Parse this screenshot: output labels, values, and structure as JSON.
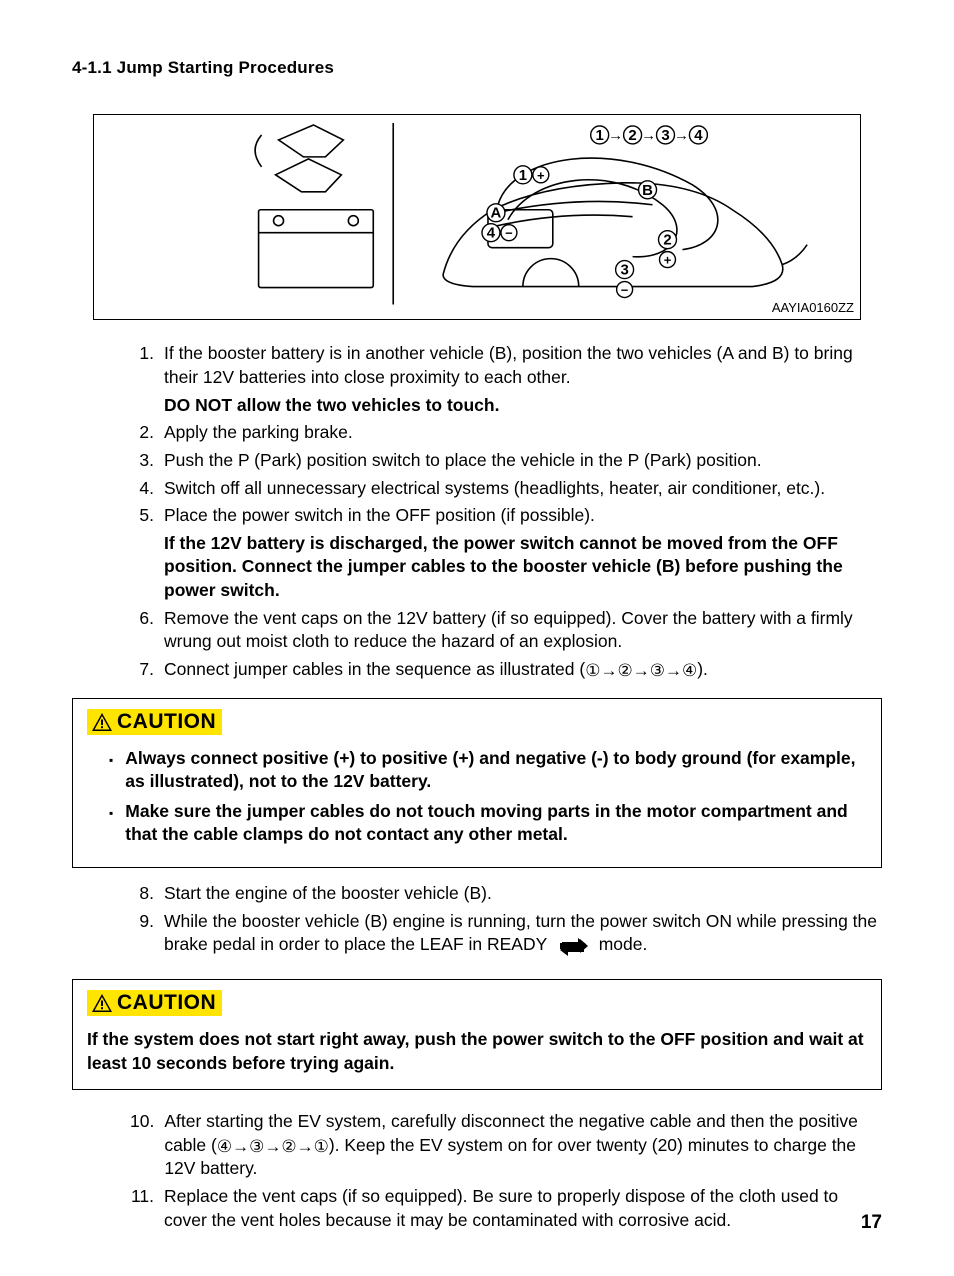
{
  "heading": "4-1.1  Jump Starting Procedures",
  "figure_ref": "AAYIA0160ZZ",
  "steps_a": [
    {
      "n": "1.",
      "t": "If the booster battery is in another vehicle (B), position the two vehicles (A and B) to bring their 12V batteries into close proximity to each other."
    }
  ],
  "bold_a": "DO NOT allow the two vehicles to touch.",
  "steps_b": [
    {
      "n": "2.",
      "t": "Apply the parking brake."
    },
    {
      "n": "3.",
      "t": "Push the P (Park) position switch to place the vehicle in the P (Park) position."
    },
    {
      "n": "4.",
      "t": "Switch off all unnecessary electrical systems (headlights, heater, air conditioner, etc.)."
    },
    {
      "n": "5.",
      "t": "Place the power switch in the OFF position (if possible)."
    }
  ],
  "bold_b": "If the 12V battery is discharged, the power switch cannot be moved from the OFF position. Connect the jumper cables to the booster vehicle (B) before pushing the power switch.",
  "steps_c": [
    {
      "n": "6.",
      "t": "Remove the vent caps on the 12V battery (if so equipped). Cover the battery with a firmly wrung out moist cloth to reduce the hazard of an explosion."
    }
  ],
  "step7_num": "7.",
  "step7_prefix": "Connect jumper cables in the sequence as illustrated (",
  "step7_seq": "①→②→③→④",
  "step7_suffix": ").",
  "caution1_bullets": [
    "Always connect positive (+) to positive (+) and negative (-) to body ground (for example, as illustrated), not to the 12V battery.",
    "Make sure the jumper cables do not touch moving parts in the motor compartment and that the cable clamps do not contact any other metal."
  ],
  "steps_d": [
    {
      "n": "8.",
      "t": "Start the engine of the booster vehicle (B)."
    }
  ],
  "step9_num": "9.",
  "step9_a": "While the booster vehicle (B) engine is running, turn the power switch ON while pressing the brake pedal in order to place the LEAF in READY",
  "step9_b": "mode.",
  "caution2_text": "If the system does not start right away, push the power switch to the OFF position and wait at least 10 seconds before trying again.",
  "step10_num": "10.",
  "step10_a": "After starting the EV system, carefully disconnect the negative cable and then the positive cable (",
  "step10_seq": "④→③→②→①",
  "step10_b": "). Keep the EV system on for over twenty (20) minutes to charge the 12V battery.",
  "steps_e": [
    {
      "n": "11.",
      "t": "Replace the vent caps (if so equipped). Be sure to properly dispose of the cloth used to cover the vent holes because it may be contaminated with corrosive acid."
    }
  ],
  "caution_word": "CAUTION",
  "page_number": "17",
  "colors": {
    "caution_bg": "#ffe400",
    "border": "#000000",
    "text": "#000000"
  }
}
